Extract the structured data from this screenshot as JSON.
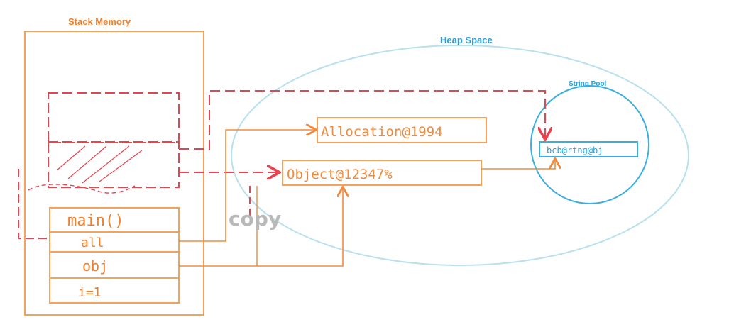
{
  "labels": {
    "stack_memory": "Stack Memory",
    "heap_space": "Heap Space",
    "string_pool": "String Pool",
    "copy": "copy"
  },
  "stack": {
    "frames": [
      {
        "label": "main()",
        "vars": [
          "all",
          "obj",
          "i=1"
        ]
      }
    ]
  },
  "heap": {
    "objects": [
      "Allocation@1994",
      "Object@12347%"
    ],
    "string_pool_items": [
      "bcb@rtng@bj"
    ]
  },
  "colors": {
    "stack": "#f5a15a",
    "stack_text": "#f07e2a",
    "heap": "#b8e0ee",
    "pool": "#3aaee0",
    "heap_text": "#2a9fd8",
    "ref_dashed": "#e8434f",
    "arrow": "#f38a3a",
    "copy": "#b9b9b9"
  }
}
